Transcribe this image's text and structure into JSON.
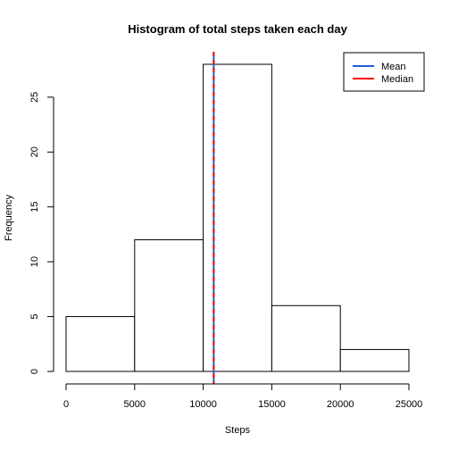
{
  "chart_data": {
    "type": "bar",
    "title": "Histogram of total steps taken each day",
    "xlabel": "Steps",
    "ylabel": "Frequency",
    "bins": [
      {
        "from": 0,
        "to": 5000,
        "count": 5
      },
      {
        "from": 5000,
        "to": 10000,
        "count": 12
      },
      {
        "from": 10000,
        "to": 15000,
        "count": 28
      },
      {
        "from": 15000,
        "to": 20000,
        "count": 6
      },
      {
        "from": 20000,
        "to": 25000,
        "count": 2
      }
    ],
    "xlim": [
      0,
      25000
    ],
    "ylim": [
      0,
      28
    ],
    "x_ticks": [
      0,
      5000,
      10000,
      15000,
      20000,
      25000
    ],
    "x_tick_labels": [
      "0",
      "5000",
      "10000",
      "15000",
      "20000",
      "25000"
    ],
    "y_ticks": [
      0,
      5,
      10,
      15,
      20,
      25
    ],
    "y_tick_labels": [
      "0",
      "5",
      "10",
      "15",
      "20",
      "25"
    ],
    "reference_lines": [
      {
        "name": "Mean",
        "value": 10766,
        "color": "#1f5fd6",
        "style": "solid"
      },
      {
        "name": "Median",
        "value": 10766,
        "color": "#ff0000",
        "style": "dashed"
      }
    ],
    "legend": {
      "position": "top-right",
      "entries": [
        {
          "label": "Mean",
          "color": "#1f5fd6"
        },
        {
          "label": "Median",
          "color": "#ff0000"
        }
      ]
    },
    "grid": false
  }
}
